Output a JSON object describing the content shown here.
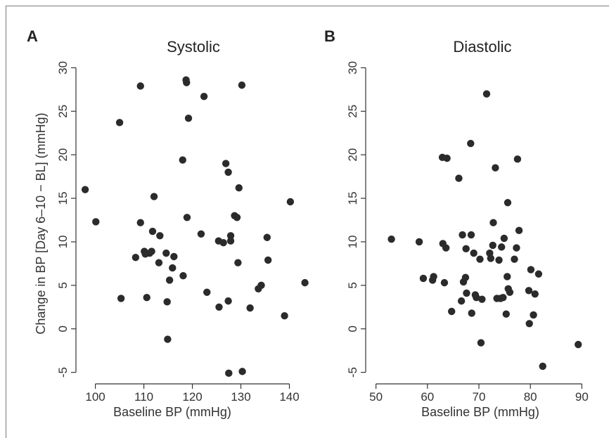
{
  "chart_data": [
    {
      "type": "scatter",
      "panel": "A",
      "title": "Systolic",
      "xlabel": "Baseline BP (mmHg)",
      "ylabel": "Change in BP [Day 6–10 − BL] (mmHg)",
      "xlim": [
        96,
        145
      ],
      "ylim": [
        -6,
        31
      ],
      "xticks": [
        100,
        110,
        120,
        130,
        140
      ],
      "yticks": [
        -5,
        0,
        5,
        10,
        15,
        20,
        25,
        30
      ],
      "grid": false,
      "points": [
        [
          97.9,
          16.0
        ],
        [
          100.1,
          12.3
        ],
        [
          105.0,
          23.7
        ],
        [
          105.3,
          3.5
        ],
        [
          108.3,
          8.2
        ],
        [
          109.3,
          27.9
        ],
        [
          109.3,
          12.2
        ],
        [
          110.1,
          8.9
        ],
        [
          110.3,
          8.6
        ],
        [
          110.6,
          3.6
        ],
        [
          111.2,
          8.7
        ],
        [
          111.6,
          8.9
        ],
        [
          111.8,
          11.2
        ],
        [
          112.1,
          15.2
        ],
        [
          113.1,
          7.6
        ],
        [
          113.3,
          10.7
        ],
        [
          114.6,
          8.7
        ],
        [
          114.8,
          3.1
        ],
        [
          114.9,
          -1.2
        ],
        [
          115.3,
          5.6
        ],
        [
          115.9,
          7.0
        ],
        [
          116.2,
          8.3
        ],
        [
          118.0,
          19.4
        ],
        [
          118.1,
          6.1
        ],
        [
          118.7,
          28.6
        ],
        [
          118.8,
          28.3
        ],
        [
          118.9,
          12.8
        ],
        [
          119.2,
          24.2
        ],
        [
          121.8,
          10.9
        ],
        [
          122.4,
          26.7
        ],
        [
          123.0,
          4.2
        ],
        [
          125.4,
          10.1
        ],
        [
          125.5,
          2.5
        ],
        [
          126.4,
          9.9
        ],
        [
          126.9,
          19.0
        ],
        [
          127.4,
          3.2
        ],
        [
          127.4,
          18.0
        ],
        [
          127.5,
          -5.1
        ],
        [
          127.9,
          10.7
        ],
        [
          127.9,
          10.1
        ],
        [
          128.7,
          13.0
        ],
        [
          129.2,
          12.8
        ],
        [
          129.4,
          7.6
        ],
        [
          129.6,
          16.2
        ],
        [
          130.2,
          28.0
        ],
        [
          130.3,
          -4.9
        ],
        [
          131.9,
          2.4
        ],
        [
          133.6,
          4.6
        ],
        [
          134.2,
          5.0
        ],
        [
          135.4,
          10.5
        ],
        [
          135.6,
          7.9
        ],
        [
          139.0,
          1.5
        ],
        [
          140.2,
          14.6
        ],
        [
          143.2,
          5.3
        ]
      ]
    },
    {
      "type": "scatter",
      "panel": "B",
      "title": "Diastolic",
      "xlabel": "Baseline BP (mmHg)",
      "ylabel": "",
      "xlim": [
        48,
        92
      ],
      "ylim": [
        -6,
        31
      ],
      "xticks": [
        50,
        60,
        70,
        80,
        90
      ],
      "yticks": [
        -5,
        0,
        5,
        10,
        15,
        20,
        25,
        30
      ],
      "grid": false,
      "points": [
        [
          53.0,
          10.3
        ],
        [
          58.4,
          10.0
        ],
        [
          59.2,
          5.8
        ],
        [
          61.0,
          5.6
        ],
        [
          61.2,
          6.0
        ],
        [
          62.9,
          19.7
        ],
        [
          63.0,
          9.8
        ],
        [
          63.3,
          5.3
        ],
        [
          63.6,
          9.3
        ],
        [
          63.8,
          19.6
        ],
        [
          64.7,
          2.0
        ],
        [
          66.1,
          17.3
        ],
        [
          66.6,
          3.2
        ],
        [
          66.8,
          10.8
        ],
        [
          67.0,
          5.4
        ],
        [
          67.4,
          5.9
        ],
        [
          67.5,
          9.2
        ],
        [
          67.6,
          4.1
        ],
        [
          68.4,
          21.3
        ],
        [
          68.5,
          10.8
        ],
        [
          68.6,
          1.8
        ],
        [
          69.0,
          8.7
        ],
        [
          69.3,
          3.9
        ],
        [
          69.5,
          3.6
        ],
        [
          70.2,
          8.0
        ],
        [
          70.4,
          -1.6
        ],
        [
          70.6,
          3.4
        ],
        [
          71.5,
          27.0
        ],
        [
          72.1,
          8.7
        ],
        [
          72.3,
          8.1
        ],
        [
          72.7,
          9.6
        ],
        [
          72.8,
          12.2
        ],
        [
          73.2,
          18.5
        ],
        [
          73.5,
          3.5
        ],
        [
          73.9,
          7.9
        ],
        [
          74.2,
          3.5
        ],
        [
          74.4,
          9.4
        ],
        [
          74.7,
          3.6
        ],
        [
          74.9,
          10.4
        ],
        [
          75.3,
          1.7
        ],
        [
          75.5,
          6.0
        ],
        [
          75.6,
          14.5
        ],
        [
          75.7,
          4.6
        ],
        [
          76.0,
          4.2
        ],
        [
          76.9,
          8.0
        ],
        [
          77.3,
          9.3
        ],
        [
          77.5,
          19.5
        ],
        [
          77.8,
          11.3
        ],
        [
          79.7,
          4.4
        ],
        [
          79.8,
          0.6
        ],
        [
          80.1,
          6.8
        ],
        [
          80.6,
          1.6
        ],
        [
          80.9,
          4.0
        ],
        [
          81.6,
          6.3
        ],
        [
          82.4,
          -4.3
        ],
        [
          89.3,
          -1.8
        ]
      ]
    }
  ]
}
